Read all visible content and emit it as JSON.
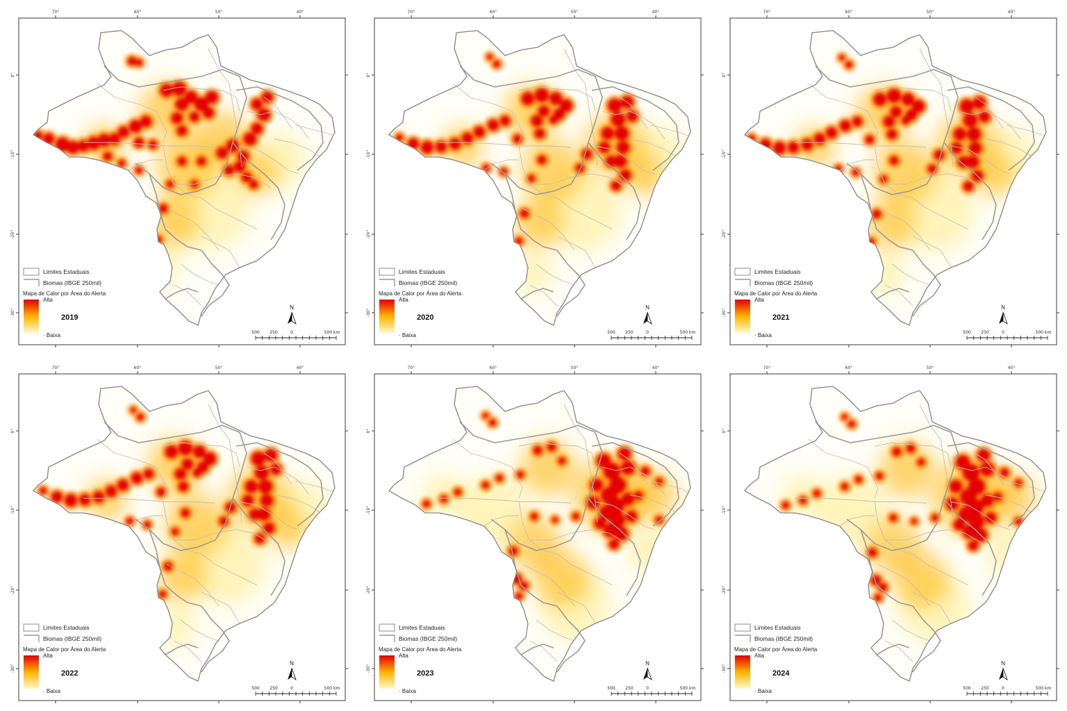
{
  "legend": {
    "states_label": "Limites Estaduais",
    "biomes_label": "Biomas (IBGE 250mil)",
    "heat_title": "Mapa de Calor por Área do Alerta",
    "high_label": "Alta",
    "low_label": "Baixa",
    "colors": {
      "high": "#e30000",
      "mid": "#ffb300",
      "low": "#fff9c9"
    }
  },
  "north_label": "N",
  "scale_labels": [
    "500",
    "250",
    "0",
    "500 km"
  ],
  "panels": [
    {
      "year": "2019",
      "hotspots": "amazon-arc"
    },
    {
      "year": "2020",
      "hotspots": "amazon-arc-cerrado"
    },
    {
      "year": "2021",
      "hotspots": "amazon-arc-cerrado"
    },
    {
      "year": "2022",
      "hotspots": "amazon-arc-cerrado"
    },
    {
      "year": "2023",
      "hotspots": "cerrado-matopiba"
    },
    {
      "year": "2024",
      "hotspots": "cerrado-matopiba"
    }
  ]
}
